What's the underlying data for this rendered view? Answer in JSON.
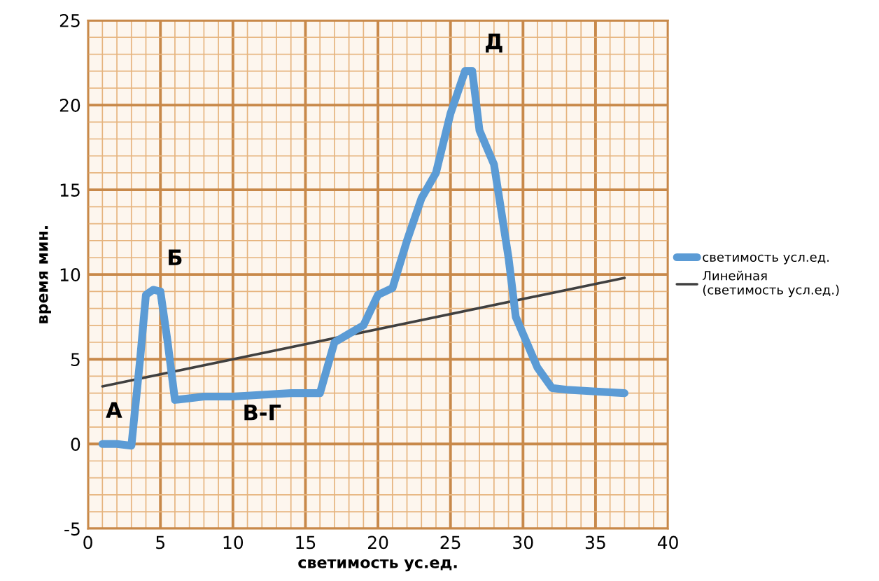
{
  "chart_data": {
    "type": "line",
    "xlabel": "светимость ус.ед.",
    "ylabel": "время мин.",
    "xlim": [
      0,
      40
    ],
    "ylim": [
      -5,
      25
    ],
    "xticks": [
      0,
      {
        "value": 1,
        "label": null
      },
      {
        "value": 2,
        "label": null
      },
      {
        "value": 3,
        "label": null
      },
      {
        "value": 4,
        "label": null
      },
      5,
      {
        "value": 6,
        "label": null
      },
      {
        "value": 7,
        "label": null
      },
      {
        "value": 8,
        "label": null
      },
      {
        "value": 9,
        "label": null
      },
      10,
      {
        "value": 11,
        "label": null
      },
      {
        "value": 12,
        "label": null
      },
      {
        "value": 13,
        "label": null
      },
      {
        "value": 14,
        "label": null
      },
      15,
      {
        "value": 16,
        "label": null
      },
      {
        "value": 17,
        "label": null
      },
      {
        "value": 18,
        "label": null
      },
      {
        "value": 19,
        "label": null
      },
      20,
      {
        "value": 21,
        "label": null
      },
      {
        "value": 22,
        "label": null
      },
      {
        "value": 23,
        "label": null
      },
      {
        "value": 24,
        "label": null
      },
      25,
      {
        "value": 26,
        "label": null
      },
      {
        "value": 27,
        "label": null
      },
      {
        "value": 28,
        "label": null
      },
      {
        "value": 29,
        "label": null
      },
      30,
      {
        "value": 31,
        "label": null
      },
      {
        "value": 32,
        "label": null
      },
      {
        "value": 33,
        "label": null
      },
      {
        "value": 34,
        "label": null
      },
      35,
      {
        "value": 36,
        "label": null
      },
      {
        "value": 37,
        "label": null
      },
      {
        "value": 38,
        "label": null
      },
      {
        "value": 39,
        "label": null
      },
      40
    ],
    "yticks": [
      -5,
      {
        "value": -4,
        "label": null
      },
      {
        "value": -3,
        "label": null
      },
      {
        "value": -2,
        "label": null
      },
      {
        "value": -1,
        "label": null
      },
      0,
      {
        "value": 1,
        "label": null
      },
      {
        "value": 2,
        "label": null
      },
      {
        "value": 3,
        "label": null
      },
      {
        "value": 4,
        "label": null
      },
      5,
      {
        "value": 6,
        "label": null
      },
      {
        "value": 7,
        "label": null
      },
      {
        "value": 8,
        "label": null
      },
      {
        "value": 9,
        "label": null
      },
      10,
      {
        "value": 11,
        "label": null
      },
      {
        "value": 12,
        "label": null
      },
      {
        "value": 13,
        "label": null
      },
      {
        "value": 14,
        "label": null
      },
      15,
      {
        "value": 16,
        "label": null
      },
      {
        "value": 17,
        "label": null
      },
      {
        "value": 18,
        "label": null
      },
      {
        "value": 19,
        "label": null
      },
      20,
      {
        "value": 21,
        "label": null
      },
      {
        "value": 22,
        "label": null
      },
      {
        "value": 23,
        "label": null
      },
      {
        "value": 24,
        "label": null
      },
      25
    ],
    "grid": true,
    "legend": "right",
    "line_style": "solid",
    "series": [
      {
        "name": "светимость усл.ед.",
        "color": "#5b9bd5",
        "x": [
          1,
          2,
          3,
          3.6,
          4,
          4.5,
          5,
          5.5,
          6,
          7,
          8,
          10,
          12,
          14,
          16,
          17,
          18,
          19,
          20,
          21,
          22,
          23,
          24,
          25,
          26,
          26.5,
          27,
          28,
          29,
          29.5,
          30,
          31,
          32,
          33,
          35,
          37
        ],
        "values": [
          0,
          0,
          -0.1,
          5,
          8.8,
          9.1,
          9,
          6,
          2.6,
          2.7,
          2.8,
          2.8,
          2.9,
          3,
          3,
          6,
          6.5,
          7,
          8.8,
          9.2,
          12,
          14.5,
          16,
          19.5,
          22,
          22,
          18.5,
          16.5,
          11,
          7.5,
          6.5,
          4.5,
          3.3,
          3.2,
          3.1,
          3
        ]
      },
      {
        "name": "Линейная (светимость усл.ед.)",
        "color": "#404040",
        "x": [
          1,
          37
        ],
        "values": [
          3.4,
          9.8
        ]
      }
    ],
    "annotations": [
      "А",
      "Б",
      "В-Г",
      "Д"
    ]
  }
}
